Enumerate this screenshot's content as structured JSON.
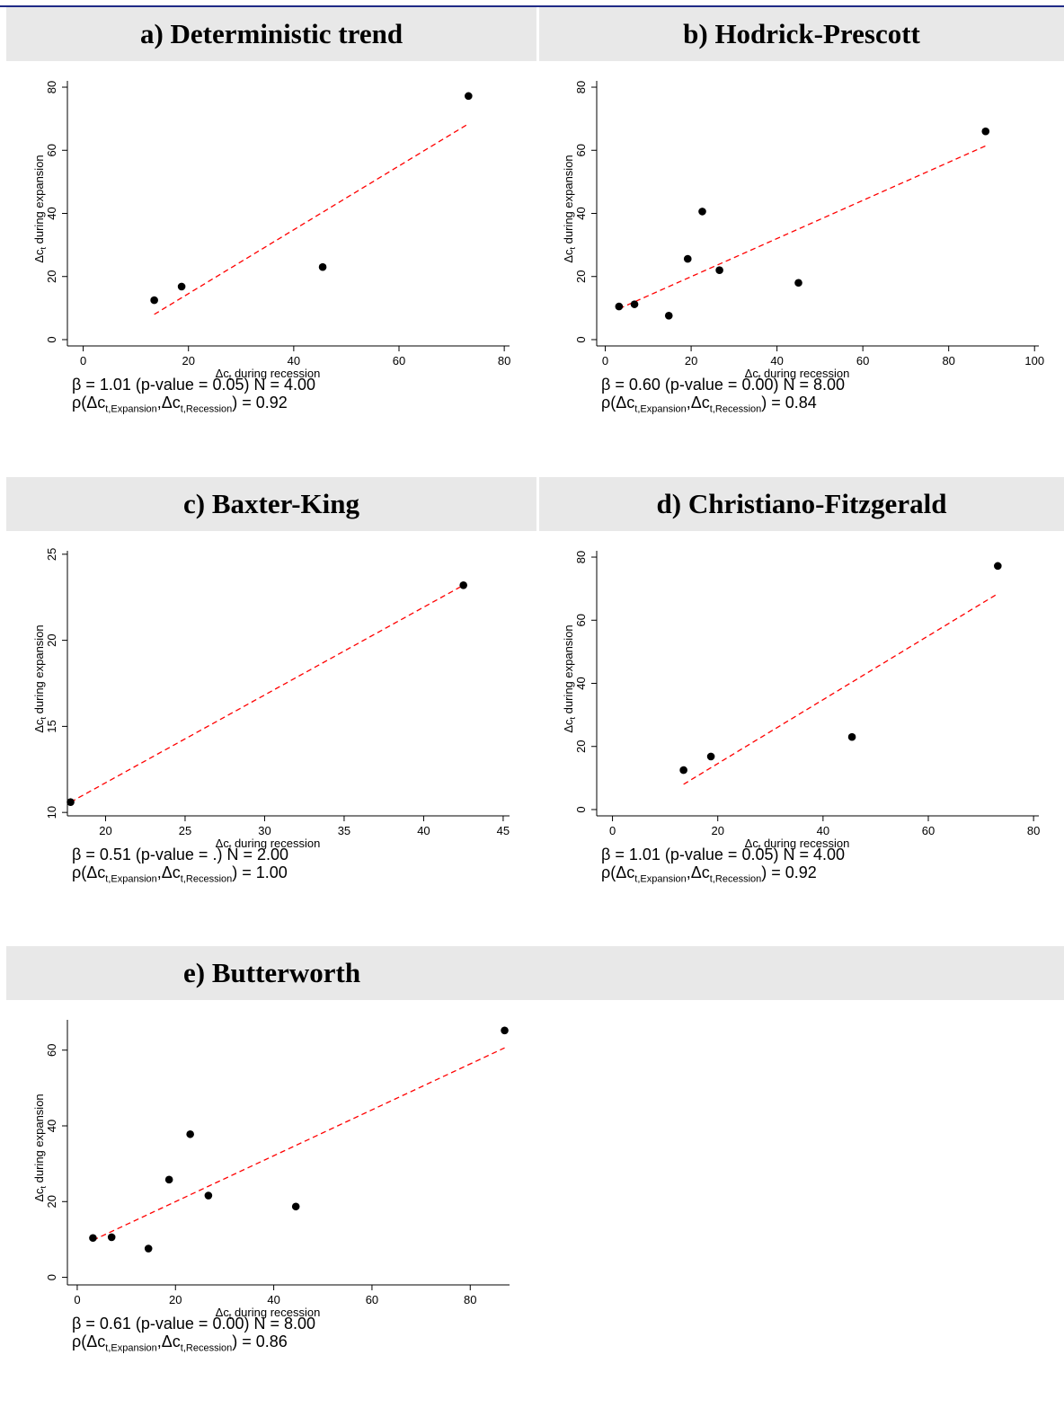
{
  "colors": {
    "header_bg": "#e8e8e8",
    "rule": "#1f2a86",
    "fit_line": "#ff0000",
    "points": "#000000"
  },
  "x_axis_label": "Δc<sub>t</sub> during recession",
  "y_axis_label": "Δc<sub>t</sub> during expansion",
  "chart_data": [
    {
      "type": "scatter",
      "title": "a) Deterministic trend",
      "xlim": [
        -3,
        81
      ],
      "ylim": [
        -2,
        82
      ],
      "xticks": [
        0,
        20,
        40,
        60,
        80
      ],
      "yticks": [
        0,
        20,
        40,
        60,
        80
      ],
      "points": [
        [
          13.5,
          12.5
        ],
        [
          18.7,
          16.8
        ],
        [
          45.5,
          23.0
        ],
        [
          73.2,
          77.2
        ]
      ],
      "fit": [
        [
          13.5,
          8.0
        ],
        [
          73.2,
          68.4
        ]
      ],
      "beta_text": "β = 1.01 (p-value = 0.05)   N = 4.00",
      "rho_value": "0.92"
    },
    {
      "type": "scatter",
      "title": "b) Hodrick-Prescott",
      "xlim": [
        -2,
        101
      ],
      "ylim": [
        -2,
        82
      ],
      "xticks": [
        0,
        20,
        40,
        60,
        80,
        100
      ],
      "yticks": [
        0,
        20,
        40,
        60,
        80
      ],
      "points": [
        [
          3.2,
          10.5
        ],
        [
          6.8,
          11.2
        ],
        [
          14.8,
          7.6
        ],
        [
          19.2,
          25.6
        ],
        [
          22.6,
          40.6
        ],
        [
          26.6,
          22.0
        ],
        [
          45.0,
          18.0
        ],
        [
          88.6,
          66.0
        ]
      ],
      "fit": [
        [
          3.2,
          9.8
        ],
        [
          88.6,
          61.4
        ]
      ],
      "beta_text": "β = 0.60 (p-value = 0.00)   N = 8.00",
      "rho_value": "0.84"
    },
    {
      "type": "scatter",
      "title": "c) Baxter-King",
      "xlim": [
        17.6,
        45.4
      ],
      "ylim": [
        9.8,
        25.2
      ],
      "xticks": [
        20,
        25,
        30,
        35,
        40,
        45
      ],
      "yticks": [
        10,
        15,
        20,
        25
      ],
      "points": [
        [
          17.8,
          10.6
        ],
        [
          42.5,
          23.2
        ]
      ],
      "fit": [
        [
          17.8,
          10.6
        ],
        [
          42.5,
          23.2
        ]
      ],
      "beta_text": "β = 0.51 (p-value = .)   N = 2.00",
      "rho_value": "1.00"
    },
    {
      "type": "scatter",
      "title": "d) Christiano-Fitzgerald",
      "xlim": [
        -3,
        81
      ],
      "ylim": [
        -2,
        82
      ],
      "xticks": [
        0,
        20,
        40,
        60,
        80
      ],
      "yticks": [
        0,
        20,
        40,
        60,
        80
      ],
      "points": [
        [
          13.5,
          12.5
        ],
        [
          18.7,
          16.8
        ],
        [
          45.5,
          23.0
        ],
        [
          73.2,
          77.2
        ]
      ],
      "fit": [
        [
          13.5,
          8.0
        ],
        [
          73.2,
          68.4
        ]
      ],
      "beta_text": "β = 1.01 (p-value = 0.05)   N = 4.00",
      "rho_value": "0.92"
    },
    {
      "type": "scatter",
      "title": "e) Butterworth",
      "xlim": [
        -2,
        88
      ],
      "ylim": [
        -2,
        68
      ],
      "xticks": [
        0,
        20,
        40,
        60,
        80
      ],
      "yticks": [
        0,
        20,
        40,
        60
      ],
      "points": [
        [
          3.2,
          10.4
        ],
        [
          7.0,
          10.6
        ],
        [
          14.5,
          7.6
        ],
        [
          18.7,
          25.8
        ],
        [
          23.0,
          37.8
        ],
        [
          26.7,
          21.6
        ],
        [
          44.5,
          18.7
        ],
        [
          87.0,
          65.2
        ]
      ],
      "fit": [
        [
          3.2,
          9.8
        ],
        [
          87.0,
          60.6
        ]
      ],
      "beta_text": "β = 0.61 (p-value = 0.00)   N = 8.00",
      "rho_value": "0.86"
    }
  ]
}
